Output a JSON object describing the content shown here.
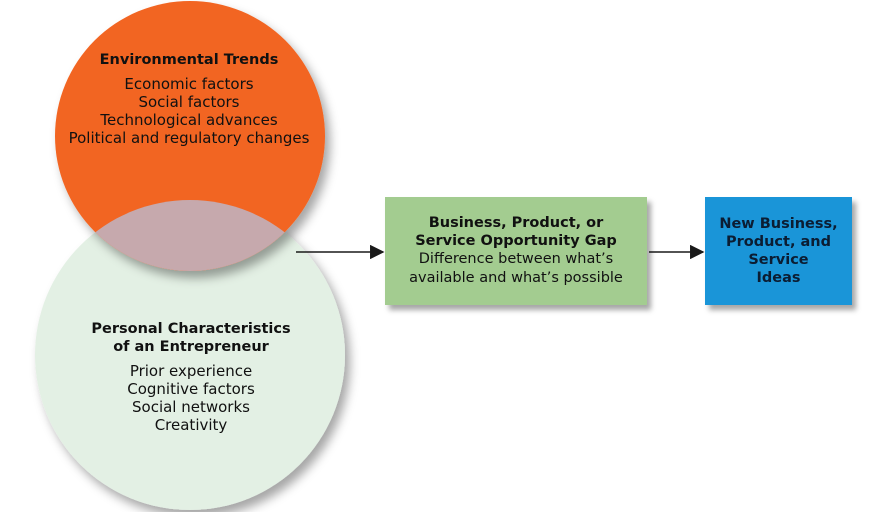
{
  "environmental": {
    "title": "Environmental Trends",
    "items": [
      "Economic factors",
      "Social factors",
      "Technological advances",
      "Political and regulatory changes"
    ],
    "color": "#f26522"
  },
  "personal": {
    "title_line1": "Personal Characteristics",
    "title_line2": "of an Entrepreneur",
    "items": [
      "Prior experience",
      "Cognitive factors",
      "Social networks",
      "Creativity"
    ],
    "color": "#e3f0e4"
  },
  "overlap": {
    "color": "#c6a9ad"
  },
  "gap_box": {
    "title_line1": "Business, Product, or",
    "title_line2": "Service Opportunity Gap",
    "desc_line1": "Difference between what’s",
    "desc_line2": "available and what’s possible",
    "color": "#a3cc90"
  },
  "ideas_box": {
    "line1": "New Business,",
    "line2": "Product, and",
    "line3": "Service",
    "line4": "Ideas",
    "color": "#1a95d8"
  }
}
